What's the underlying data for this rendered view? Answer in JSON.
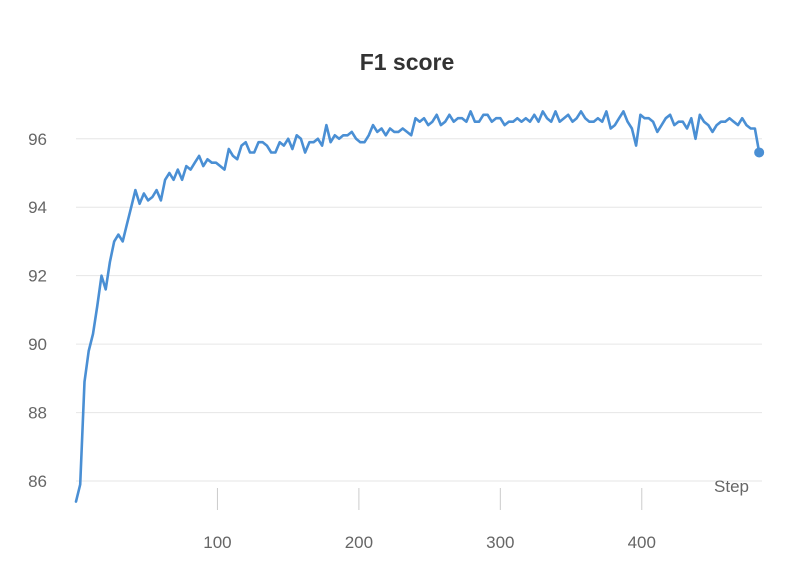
{
  "chart_data": {
    "type": "line",
    "title": "F1 score",
    "xlabel": "Step",
    "ylabel": "",
    "xlim": [
      0,
      485
    ],
    "ylim": [
      85.3,
      97.6
    ],
    "xticks": [
      100,
      200,
      300,
      400
    ],
    "yticks": [
      86,
      88,
      90,
      92,
      94,
      96
    ],
    "grid": true,
    "legend": "none",
    "series_color": "#4a8fd4",
    "series": [
      {
        "x": [
          0,
          3,
          6,
          9,
          12,
          15,
          18,
          21,
          24,
          27,
          30,
          33,
          36,
          39,
          42,
          45,
          48,
          51,
          54,
          57,
          60,
          63,
          66,
          69,
          72,
          75,
          78,
          81,
          84,
          87,
          90,
          93,
          96,
          99,
          102,
          105,
          108,
          111,
          114,
          117,
          120,
          123,
          126,
          129,
          132,
          135,
          138,
          141,
          144,
          147,
          150,
          153,
          156,
          159,
          162,
          165,
          168,
          171,
          174,
          177,
          180,
          183,
          186,
          189,
          192,
          195,
          198,
          201,
          204,
          207,
          210,
          213,
          216,
          219,
          222,
          225,
          228,
          231,
          234,
          237,
          240,
          243,
          246,
          249,
          252,
          255,
          258,
          261,
          264,
          267,
          270,
          273,
          276,
          279,
          282,
          285,
          288,
          291,
          294,
          297,
          300,
          303,
          306,
          309,
          312,
          315,
          318,
          321,
          324,
          327,
          330,
          333,
          336,
          339,
          342,
          345,
          348,
          351,
          354,
          357,
          360,
          363,
          366,
          369,
          372,
          375,
          378,
          381,
          384,
          387,
          390,
          393,
          396,
          399,
          402,
          405,
          408,
          411,
          414,
          417,
          420,
          423,
          426,
          429,
          432,
          435,
          438,
          441,
          444,
          447,
          450,
          453,
          456,
          459,
          462,
          465,
          468,
          471,
          474,
          477,
          480,
          483
        ],
        "y": [
          85.4,
          85.9,
          88.9,
          89.8,
          90.3,
          91.1,
          92.0,
          91.6,
          92.4,
          93.0,
          93.2,
          93.0,
          93.5,
          94.0,
          94.5,
          94.1,
          94.4,
          94.2,
          94.3,
          94.5,
          94.2,
          94.8,
          95.0,
          94.8,
          95.1,
          94.8,
          95.2,
          95.1,
          95.3,
          95.5,
          95.2,
          95.4,
          95.3,
          95.3,
          95.2,
          95.1,
          95.7,
          95.5,
          95.4,
          95.8,
          95.9,
          95.6,
          95.6,
          95.9,
          95.9,
          95.8,
          95.6,
          95.6,
          95.9,
          95.8,
          96.0,
          95.7,
          96.1,
          96.0,
          95.6,
          95.9,
          95.9,
          96.0,
          95.8,
          96.4,
          95.9,
          96.1,
          96.0,
          96.1,
          96.1,
          96.2,
          96.0,
          95.9,
          95.9,
          96.1,
          96.4,
          96.2,
          96.3,
          96.1,
          96.3,
          96.2,
          96.2,
          96.3,
          96.2,
          96.1,
          96.6,
          96.5,
          96.6,
          96.4,
          96.5,
          96.7,
          96.4,
          96.5,
          96.7,
          96.5,
          96.6,
          96.6,
          96.5,
          96.8,
          96.5,
          96.5,
          96.7,
          96.7,
          96.5,
          96.6,
          96.6,
          96.4,
          96.5,
          96.5,
          96.6,
          96.5,
          96.6,
          96.5,
          96.7,
          96.5,
          96.8,
          96.6,
          96.5,
          96.8,
          96.5,
          96.6,
          96.7,
          96.5,
          96.6,
          96.8,
          96.6,
          96.5,
          96.5,
          96.6,
          96.5,
          96.8,
          96.3,
          96.4,
          96.6,
          96.8,
          96.5,
          96.3,
          95.8,
          96.7,
          96.6,
          96.6,
          96.5,
          96.2,
          96.4,
          96.6,
          96.7,
          96.4,
          96.5,
          96.5,
          96.3,
          96.6,
          96.0,
          96.7,
          96.5,
          96.4,
          96.2,
          96.4,
          96.5,
          96.5,
          96.6,
          96.5,
          96.4,
          96.6,
          96.4,
          96.3,
          96.3,
          95.6
        ]
      }
    ]
  }
}
